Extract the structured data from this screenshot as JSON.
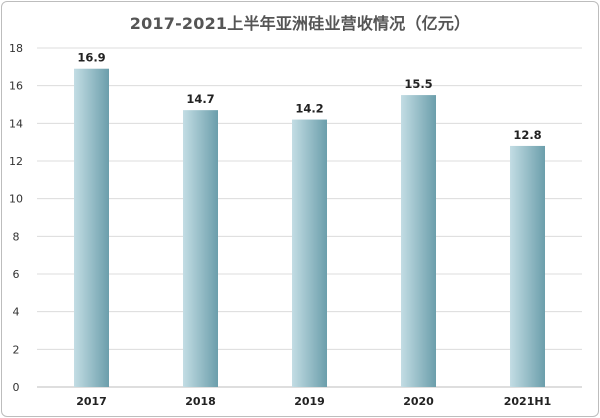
{
  "chart_data": {
    "type": "bar",
    "title": "2017-2021上半年亚洲硅业营收情况（亿元）",
    "categories": [
      "2017",
      "2018",
      "2019",
      "2020",
      "2021H1"
    ],
    "values": [
      16.9,
      14.7,
      14.2,
      15.5,
      12.8
    ],
    "value_labels": [
      "16.9",
      "14.7",
      "14.2",
      "15.5",
      "12.8"
    ],
    "xlabel": "",
    "ylabel": "",
    "ylim": [
      0,
      18
    ],
    "yticks": [
      "0",
      "2",
      "4",
      "6",
      "8",
      "10",
      "12",
      "14",
      "16",
      "18"
    ],
    "grid": true,
    "legend": "none",
    "colors": {
      "bar_light": "#c3dde4",
      "bar_dark": "#6b9eab",
      "grid": "#dcdcdc",
      "axis": "#bdbdbd"
    }
  }
}
